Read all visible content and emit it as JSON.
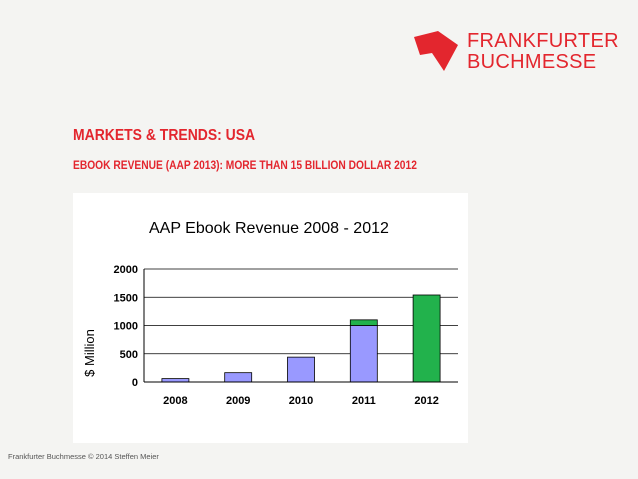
{
  "brand": {
    "name_line1": "FRANKFURTER",
    "name_line2": "BUCHMESSE",
    "color": "#e3262e"
  },
  "slide": {
    "title": "MARKETS & TRENDS: USA",
    "subtitle": "EBOOK REVENUE (AAP 2013): MORE THAN 15 BILLION DOLLAR 2012"
  },
  "footer": {
    "text": "Frankfurter Buchmesse © 2014 Steffen Meier"
  },
  "chart_data": {
    "type": "bar",
    "title": "AAP Ebook Revenue 2008 - 2012",
    "xlabel": "",
    "ylabel": "$ Million",
    "categories": [
      "2008",
      "2009",
      "2010",
      "2011",
      "2012"
    ],
    "series": [
      {
        "name": "Revenue (base)",
        "color": "#9999ff",
        "values": [
          60,
          165,
          440,
          1000,
          0
        ]
      },
      {
        "name": "Revenue (growth)",
        "color": "#22b24c",
        "values": [
          0,
          0,
          0,
          100,
          1540
        ]
      }
    ],
    "ylim": [
      0,
      2000
    ],
    "yticks": [
      0,
      500,
      1000,
      1500,
      2000
    ],
    "grid": true,
    "stacked": true
  }
}
